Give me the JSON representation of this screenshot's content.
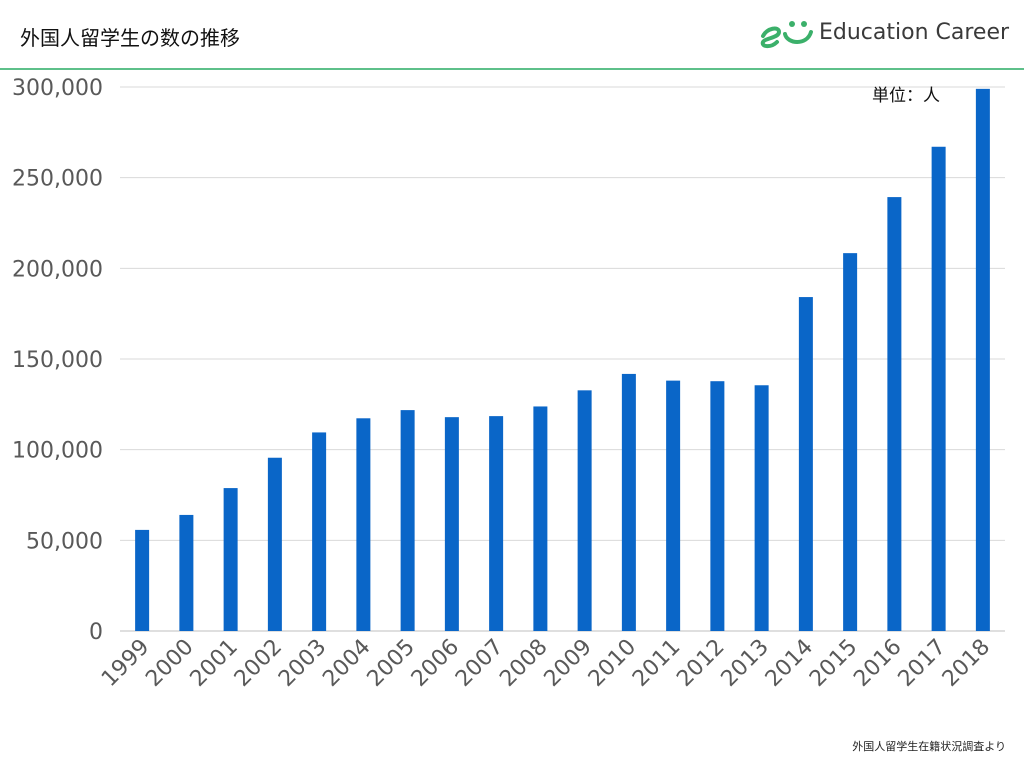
{
  "header": {
    "title": "外国人留学生の数の推移",
    "logo_text": "Education Career",
    "logo_icon": "education-career-logo-icon"
  },
  "unit_label": "単位：人",
  "source_note": "外国人留学生在籍状況調査より",
  "colors": {
    "bar": "#0a66c8",
    "header_rule": "#5ec08a",
    "gridline": "#d9d9d9",
    "tick_text": "#595959",
    "logo_green": "#3bb06a"
  },
  "chart_data": {
    "type": "bar",
    "categories": [
      "1999",
      "2000",
      "2001",
      "2002",
      "2003",
      "2004",
      "2005",
      "2006",
      "2007",
      "2008",
      "2009",
      "2010",
      "2011",
      "2012",
      "2013",
      "2014",
      "2015",
      "2016",
      "2017",
      "2018"
    ],
    "values": [
      55755,
      64011,
      78812,
      95550,
      109508,
      117302,
      121812,
      117927,
      118498,
      123829,
      132720,
      141774,
      138075,
      137756,
      135519,
      184155,
      208379,
      239287,
      267042,
      298980
    ],
    "ylim": [
      0,
      300000
    ],
    "yticks": [
      0,
      50000,
      100000,
      150000,
      200000,
      250000,
      300000
    ],
    "ytick_labels": [
      "0",
      "50,000",
      "100,000",
      "150,000",
      "200,000",
      "250,000",
      "300,000"
    ],
    "grid": true,
    "title": "",
    "xlabel": "",
    "ylabel": ""
  }
}
